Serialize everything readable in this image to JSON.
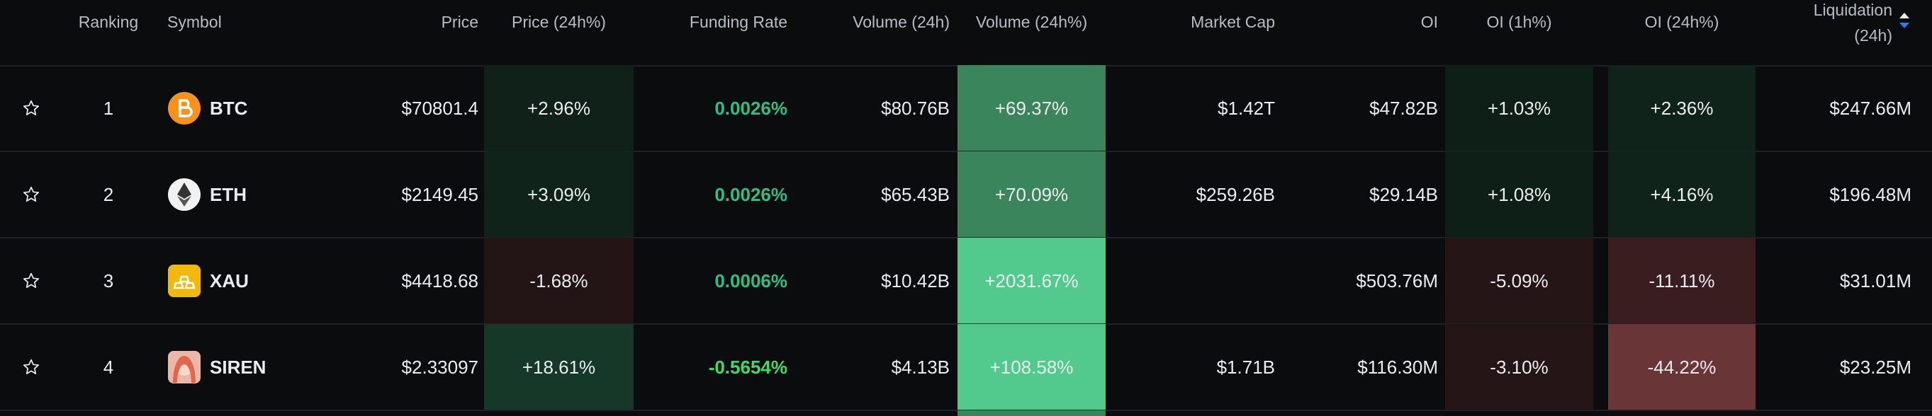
{
  "table": {
    "headers": [
      "Ranking",
      "Symbol",
      "Price",
      "Price (24h%)",
      "Funding Rate",
      "Volume (24h)",
      "Volume (24h%)",
      "Market Cap",
      "OI",
      "OI (1h%)",
      "OI (24h%)",
      "Liquidation (24h)"
    ],
    "rows": [
      {
        "rank": 1,
        "symbol": "BTC",
        "price": "$70801.4",
        "price_change": "+2.96%",
        "funding_rate": "0.0026%",
        "volume": "$80.76B",
        "volume_change": "+69.37%",
        "market_cap": "$1.42T",
        "oi": "$47.82B",
        "oi_1h": "+1.03%",
        "oi_24h": "+2.36%",
        "liquidation": "$247.66M"
      },
      {
        "rank": 2,
        "symbol": "ETH",
        "price": "$2149.45",
        "price_change": "+3.09%",
        "funding_rate": "0.0026%",
        "volume": "$65.43B",
        "volume_change": "+70.09%",
        "market_cap": "$259.26B",
        "oi": "$29.14B",
        "oi_1h": "+1.08%",
        "oi_24h": "+4.16%",
        "liquidation": "$196.48M"
      },
      {
        "rank": 3,
        "symbol": "XAU",
        "price": "$4418.68",
        "price_change": "-1.68%",
        "funding_rate": "0.0006%",
        "volume": "$10.42B",
        "volume_change": "+2031.67%",
        "oi": "$503.76M",
        "oi_1h": "-5.09%",
        "oi_24h": "-11.11%",
        "liquidation": "$31.01M"
      },
      {
        "rank": 4,
        "symbol": "SIREN",
        "price": "$2.33097",
        "price_change": "+18.61%",
        "funding_rate": "-0.5654%",
        "volume": "$4.13B",
        "volume_change": "+108.58%",
        "market_cap": "$1.71B",
        "oi": "$116.30M",
        "oi_1h": "-3.10%",
        "oi_24h": "-44.22%",
        "liquidation": "$23.25M"
      }
    ]
  }
}
